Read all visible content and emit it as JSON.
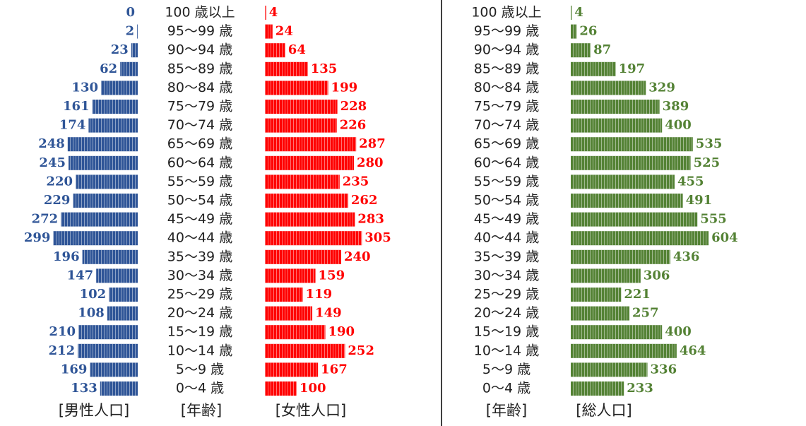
{
  "chart_data": [
    {
      "type": "pyramid",
      "categories": [
        "100 歳以上",
        "95〜99 歳",
        "90〜94 歳",
        "85〜89 歳",
        "80〜84 歳",
        "75〜79 歳",
        "70〜74 歳",
        "65〜69 歳",
        "60〜64 歳",
        "55〜59 歳",
        "50〜54 歳",
        "45〜49 歳",
        "40〜44 歳",
        "35〜39 歳",
        "30〜34 歳",
        "25〜29 歳",
        "20〜24 歳",
        "15〜19 歳",
        "10〜14 歳",
        "5〜9 歳",
        "0〜4 歳"
      ],
      "category_label": "[年齢]",
      "series": [
        {
          "name": "[男性人口]",
          "color": "#2f5597",
          "values": [
            0,
            2,
            23,
            62,
            130,
            161,
            174,
            248,
            245,
            220,
            229,
            272,
            299,
            196,
            147,
            102,
            108,
            210,
            212,
            169,
            133
          ]
        },
        {
          "name": "[女性人口]",
          "color": "#ff0000",
          "values": [
            4,
            24,
            64,
            135,
            199,
            228,
            226,
            287,
            280,
            235,
            262,
            283,
            305,
            240,
            159,
            119,
            149,
            190,
            252,
            167,
            100
          ]
        }
      ]
    },
    {
      "type": "bar",
      "categories": [
        "100 歳以上",
        "95〜99 歳",
        "90〜94 歳",
        "85〜89 歳",
        "80〜84 歳",
        "75〜79 歳",
        "70〜74 歳",
        "65〜69 歳",
        "60〜64 歳",
        "55〜59 歳",
        "50〜54 歳",
        "45〜49 歳",
        "40〜44 歳",
        "35〜39 歳",
        "30〜34 歳",
        "25〜29 歳",
        "20〜24 歳",
        "15〜19 歳",
        "10〜14 歳",
        "5〜9 歳",
        "0〜4 歳"
      ],
      "category_label": "[年齢]",
      "series": [
        {
          "name": "[総人口]",
          "color": "#548235",
          "values": [
            4,
            26,
            87,
            197,
            329,
            389,
            400,
            535,
            525,
            455,
            491,
            555,
            604,
            436,
            306,
            221,
            257,
            400,
            464,
            336,
            233
          ]
        }
      ]
    }
  ]
}
